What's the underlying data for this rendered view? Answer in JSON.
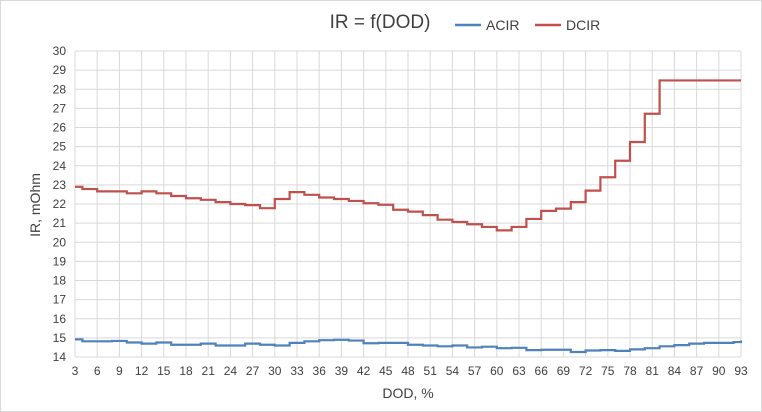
{
  "chart_data": {
    "type": "line",
    "title": "IR = f(DOD)",
    "xlabel": "DOD, %",
    "ylabel": "IR, mOhm",
    "ylim": [
      14,
      30
    ],
    "xlim": [
      3,
      93
    ],
    "x_ticks": [
      3,
      6,
      9,
      12,
      15,
      18,
      21,
      24,
      27,
      30,
      33,
      36,
      39,
      42,
      45,
      48,
      51,
      54,
      57,
      60,
      63,
      66,
      69,
      72,
      75,
      78,
      81,
      84,
      87,
      90,
      93
    ],
    "y_ticks": [
      14,
      15,
      16,
      17,
      18,
      19,
      20,
      21,
      22,
      23,
      24,
      25,
      26,
      27,
      28,
      29,
      30
    ],
    "grid": true,
    "legend": "top-right",
    "line_style": "step",
    "series": [
      {
        "name": "ACIR",
        "color": "#4f81bd",
        "x": [
          3,
          4,
          6,
          8,
          9,
          10,
          12,
          14,
          15,
          16,
          18,
          20,
          21,
          22,
          24,
          26,
          27,
          28,
          30,
          32,
          33,
          34,
          36,
          38,
          39,
          40,
          42,
          44,
          45,
          46,
          48,
          50,
          51,
          52,
          54,
          56,
          57,
          58,
          60,
          62,
          63,
          64,
          66,
          68,
          69,
          70,
          72,
          74,
          75,
          76,
          78,
          80,
          81,
          82,
          84,
          86,
          87,
          88,
          90,
          92,
          93
        ],
        "values": [
          14.92,
          14.82,
          14.82,
          14.84,
          14.84,
          14.76,
          14.7,
          14.76,
          14.76,
          14.64,
          14.64,
          14.7,
          14.7,
          14.6,
          14.6,
          14.7,
          14.7,
          14.64,
          14.6,
          14.74,
          14.74,
          14.82,
          14.88,
          14.9,
          14.9,
          14.86,
          14.72,
          14.74,
          14.74,
          14.74,
          14.64,
          14.6,
          14.6,
          14.56,
          14.6,
          14.5,
          14.5,
          14.54,
          14.46,
          14.48,
          14.48,
          14.36,
          14.38,
          14.38,
          14.38,
          14.26,
          14.34,
          14.36,
          14.36,
          14.32,
          14.4,
          14.46,
          14.46,
          14.56,
          14.62,
          14.7,
          14.7,
          14.74,
          14.74,
          14.78,
          14.86
        ]
      },
      {
        "name": "DCIR",
        "color": "#c0504d",
        "x": [
          3,
          4,
          6,
          8,
          9,
          10,
          12,
          14,
          15,
          16,
          18,
          20,
          21,
          22,
          24,
          26,
          27,
          28,
          30,
          32,
          33,
          34,
          36,
          38,
          39,
          40,
          42,
          44,
          45,
          46,
          48,
          50,
          51,
          52,
          54,
          56,
          57,
          58,
          60,
          62,
          63,
          64,
          66,
          68,
          69,
          70,
          72,
          74,
          75,
          76,
          78,
          80,
          81,
          82,
          84,
          86,
          87,
          88,
          90,
          92,
          93
        ],
        "values": [
          22.9,
          22.78,
          22.66,
          22.66,
          22.66,
          22.56,
          22.66,
          22.56,
          22.56,
          22.42,
          22.3,
          22.22,
          22.22,
          22.1,
          22.0,
          21.94,
          21.94,
          21.78,
          22.26,
          22.62,
          22.62,
          22.48,
          22.34,
          22.26,
          22.26,
          22.16,
          22.04,
          21.96,
          21.96,
          21.7,
          21.6,
          21.42,
          21.42,
          21.18,
          21.06,
          20.94,
          20.94,
          20.8,
          20.62,
          20.8,
          20.8,
          21.22,
          21.64,
          21.76,
          21.76,
          22.1,
          22.7,
          23.4,
          23.4,
          24.26,
          25.24,
          26.72,
          26.72,
          28.46,
          28.46,
          28.46,
          28.46,
          28.46,
          28.46,
          28.46,
          28.46
        ]
      }
    ]
  }
}
